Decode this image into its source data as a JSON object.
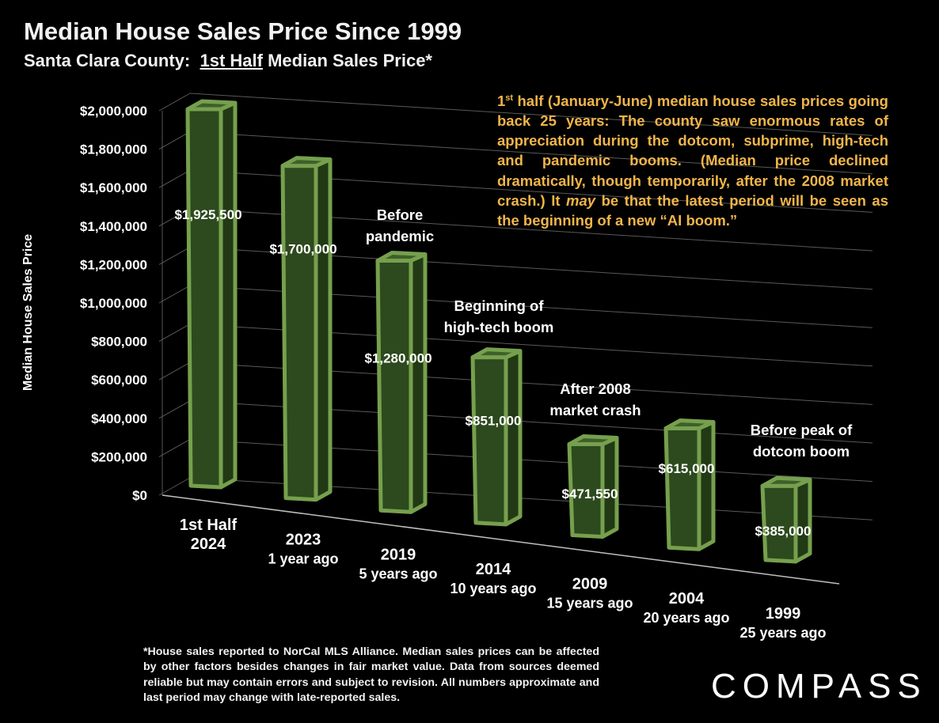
{
  "header": {
    "title": "Median House Sales Price Since 1999",
    "subtitle_prefix": "Santa Clara County:",
    "subtitle_underlined": "1st Half",
    "subtitle_suffix": "Median Sales Price*"
  },
  "description": {
    "lead": "1",
    "lead_sup": "st",
    "part1": " half (January-June) median house sales prices going back 25 years: The county saw enormous rates of appreciation during the dotcom, subprime, high-tech and pandemic booms. (Median price declined dramatically, though temporarily, after the 2008 market crash.) It ",
    "emphasis": "may",
    "part2": " be that the latest period will be seen as the beginning of a new “AI boom.”"
  },
  "footnote": "*House sales reported to NorCal MLS Alliance. Median sales prices can be affected by other factors besides changes in fair market value. Data from sources deemed reliable but may contain errors and subject to revision. All numbers approximate and last period may change with late-reported sales.",
  "logo": "COMPASS",
  "colors": {
    "background": "#000000",
    "bar_face": "#2d4a1e",
    "bar_side": "#223915",
    "bar_top": "#3f5f2a",
    "bar_outline": "#76a04d",
    "grid": "#595959",
    "annotation_text": "#f0b54a"
  },
  "chart_data": {
    "type": "bar",
    "title": "Median House Sales Price Since 1999",
    "subtitle": "Santa Clara County: 1st Half Median Sales Price*",
    "xlabel": "",
    "ylabel": "Median House Sales Price",
    "ylim": [
      0,
      2000000
    ],
    "ytick_values": [
      0,
      200000,
      400000,
      600000,
      800000,
      1000000,
      1200000,
      1400000,
      1600000,
      1800000,
      2000000
    ],
    "ytick_labels": [
      "$0",
      "$200,000",
      "$400,000",
      "$600,000",
      "$800,000",
      "$1,000,000",
      "$1,200,000",
      "$1,400,000",
      "$1,600,000",
      "$1,800,000",
      "$2,000,000"
    ],
    "grid": true,
    "categories": [
      {
        "label": "1st Half",
        "sublabel": "2024"
      },
      {
        "label": "2023",
        "sublabel": "1 year ago"
      },
      {
        "label": "2019",
        "sublabel": "5 years ago"
      },
      {
        "label": "2014",
        "sublabel": "10 years ago"
      },
      {
        "label": "2009",
        "sublabel": "15 years ago"
      },
      {
        "label": "2004",
        "sublabel": "20 years ago"
      },
      {
        "label": "1999",
        "sublabel": "25 years ago"
      }
    ],
    "values": [
      1925500,
      1700000,
      1280000,
      851000,
      471550,
      615000,
      385000
    ],
    "data_labels": [
      "$1,925,500",
      "$1,700,000",
      "$1,280,000",
      "$851,000",
      "$471,550",
      "$615,000",
      "$385,000"
    ],
    "annotations": [
      {
        "category_index": 2,
        "lines": [
          "Before",
          "pandemic"
        ]
      },
      {
        "category_index": 3,
        "lines": [
          "Beginning of",
          "high-tech boom"
        ]
      },
      {
        "category_index": 4,
        "lines": [
          "After 2008",
          "market crash"
        ]
      },
      {
        "category_index": 6,
        "lines": [
          "Before peak of",
          "dotcom boom"
        ]
      }
    ]
  }
}
